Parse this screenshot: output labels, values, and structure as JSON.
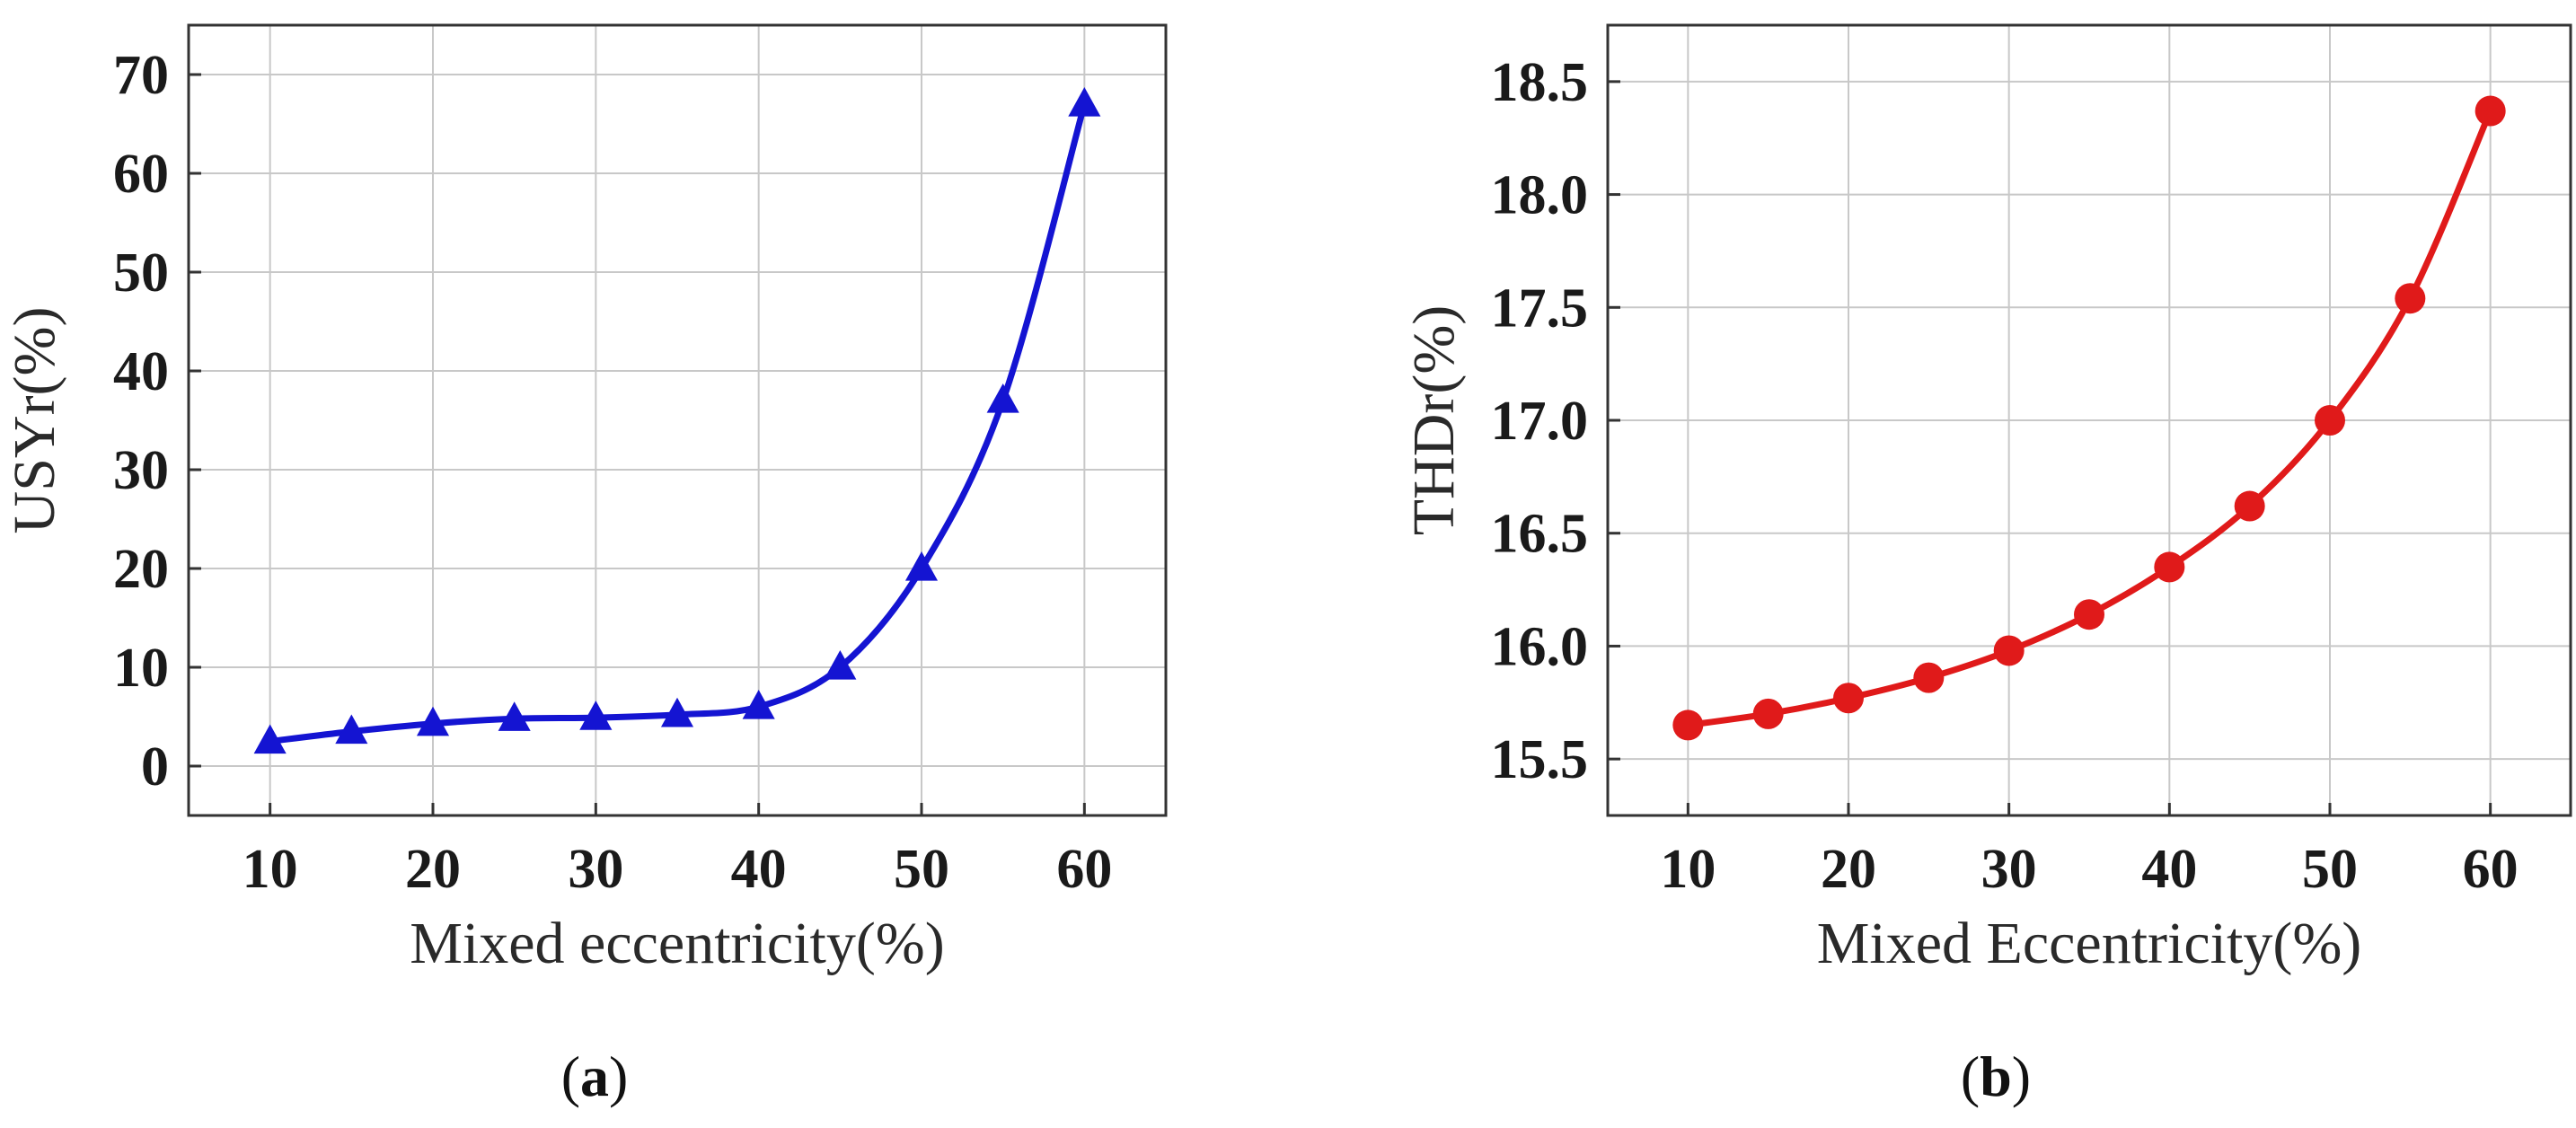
{
  "figure": {
    "panels": [
      {
        "id": "a",
        "label_open": "(",
        "label_letter": "a",
        "label_close": ")"
      },
      {
        "id": "b",
        "label_open": "(",
        "label_letter": "b",
        "label_close": ")"
      }
    ]
  },
  "chart_data": [
    {
      "type": "line",
      "panel": "a",
      "title": "",
      "xlabel": "Mixed eccentricity(%)",
      "ylabel": "USYr(%)",
      "xlim": [
        5,
        65
      ],
      "ylim": [
        -5,
        75
      ],
      "xticks": [
        10,
        20,
        30,
        40,
        50,
        60
      ],
      "yticks": [
        0,
        10,
        20,
        30,
        40,
        50,
        60,
        70
      ],
      "grid": true,
      "marker": "triangle",
      "color": "#1414d2",
      "series": [
        {
          "name": "USYr",
          "x": [
            10,
            15,
            20,
            25,
            30,
            35,
            40,
            45,
            50,
            55,
            60
          ],
          "values": [
            2.5,
            3.5,
            4.3,
            4.8,
            4.9,
            5.2,
            6.0,
            10.0,
            20.0,
            37.0,
            67.0
          ]
        }
      ]
    },
    {
      "type": "line",
      "panel": "b",
      "title": "",
      "xlabel": "Mixed Eccentricity(%)",
      "ylabel": "THDr(%)",
      "xlim": [
        5,
        65
      ],
      "ylim": [
        15.25,
        18.75
      ],
      "xticks": [
        10,
        20,
        30,
        40,
        50,
        60
      ],
      "yticks": [
        15.5,
        16.0,
        16.5,
        17.0,
        17.5,
        18.0,
        18.5
      ],
      "ytick_labels": [
        "15.5",
        "16.0",
        "16.5",
        "17.0",
        "17.5",
        "18.0",
        "18.5"
      ],
      "grid": true,
      "marker": "circle",
      "color": "#e01a1a",
      "series": [
        {
          "name": "THDr",
          "x": [
            10,
            15,
            20,
            25,
            30,
            35,
            40,
            45,
            50,
            55,
            60
          ],
          "values": [
            15.65,
            15.7,
            15.77,
            15.86,
            15.98,
            16.14,
            16.35,
            16.62,
            17.0,
            17.54,
            18.37
          ]
        }
      ]
    }
  ]
}
